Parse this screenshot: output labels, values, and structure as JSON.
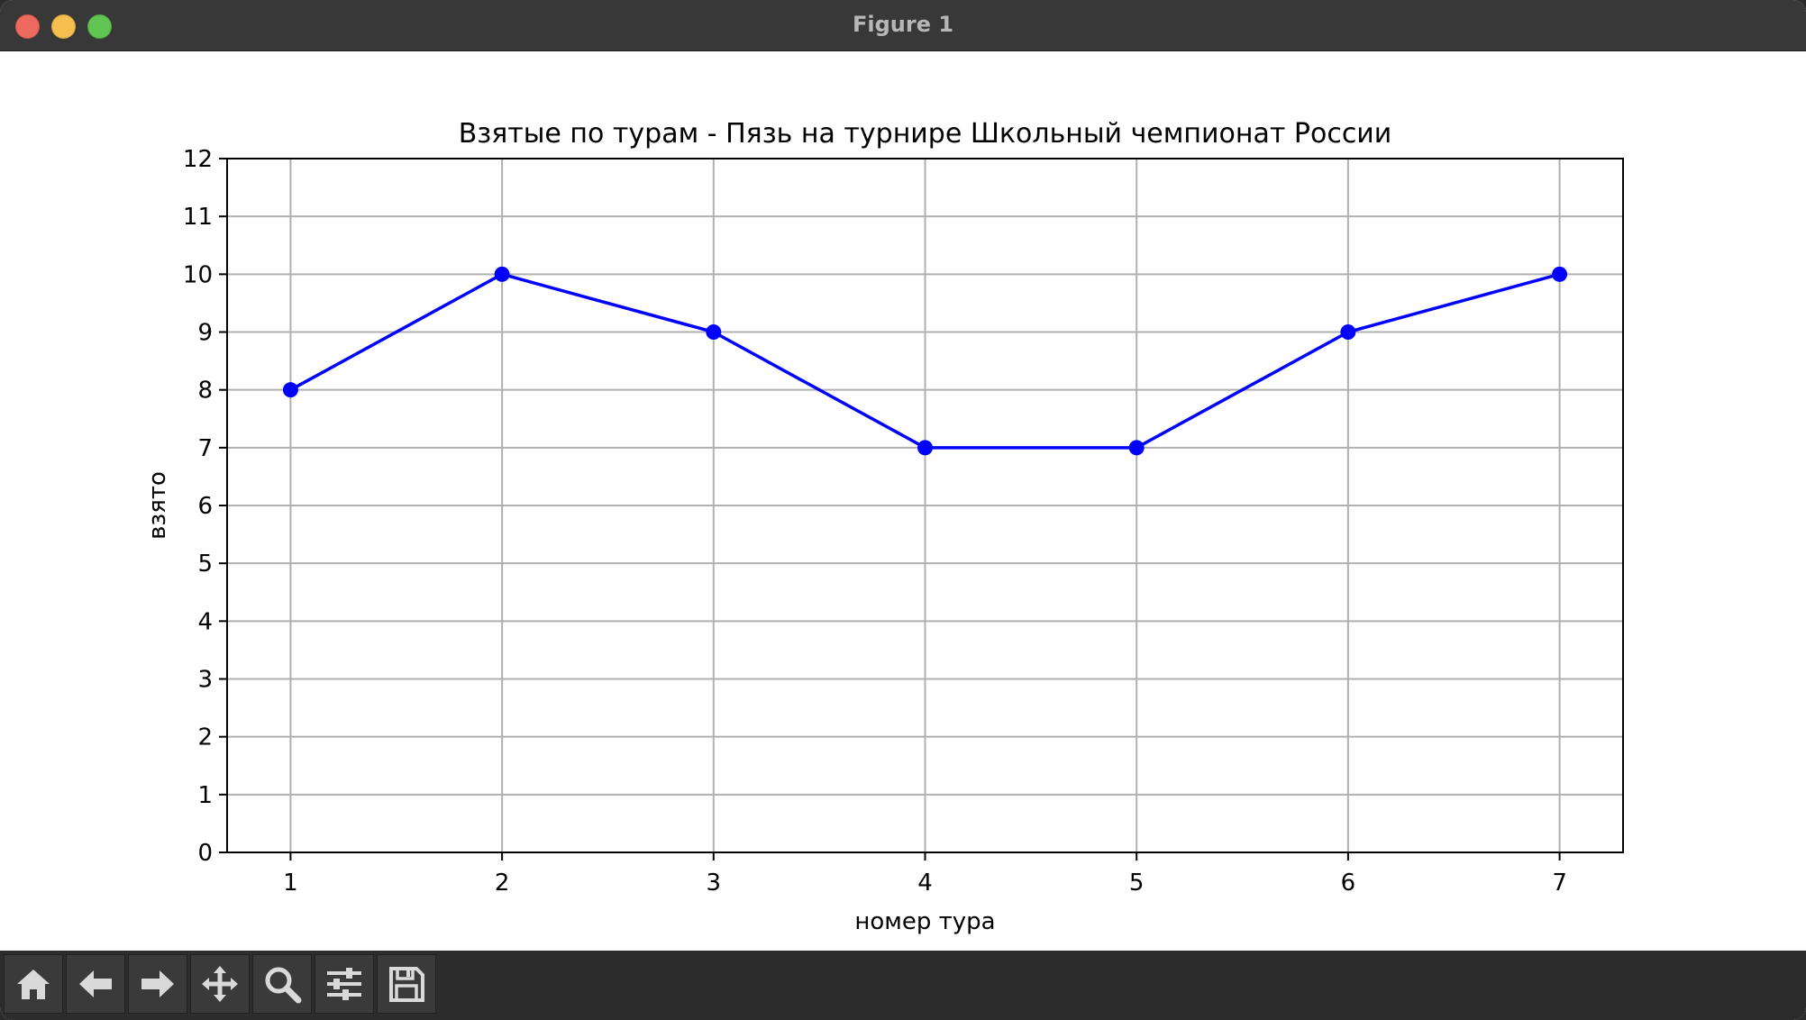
{
  "window": {
    "title": "Figure 1"
  },
  "toolbar": {
    "buttons": [
      {
        "name": "home-icon"
      },
      {
        "name": "back-arrow-icon"
      },
      {
        "name": "forward-arrow-icon"
      },
      {
        "name": "pan-icon"
      },
      {
        "name": "zoom-icon"
      },
      {
        "name": "configure-subplots-icon"
      },
      {
        "name": "save-icon"
      }
    ]
  },
  "colors": {
    "series": "#0000ff",
    "grid": "#b0b0b0",
    "titlebar": "#383838",
    "toolbar": "#2c2c2c"
  },
  "chart_data": {
    "type": "line",
    "title": "Взятые по турам - Пязь на турнире Школьный чемпионат России",
    "xlabel": "номер тура",
    "ylabel": "взято",
    "x": [
      1,
      2,
      3,
      4,
      5,
      6,
      7
    ],
    "xticks": [
      "1",
      "2",
      "3",
      "4",
      "5",
      "6",
      "7"
    ],
    "yticks": [
      "0",
      "1",
      "2",
      "3",
      "4",
      "5",
      "6",
      "7",
      "8",
      "9",
      "10",
      "11",
      "12"
    ],
    "xlim": [
      0.7,
      7.3
    ],
    "ylim": [
      0,
      12
    ],
    "grid": true,
    "markers": "circle",
    "series": [
      {
        "values": [
          8,
          10,
          9,
          7,
          7,
          9,
          10
        ]
      }
    ]
  }
}
